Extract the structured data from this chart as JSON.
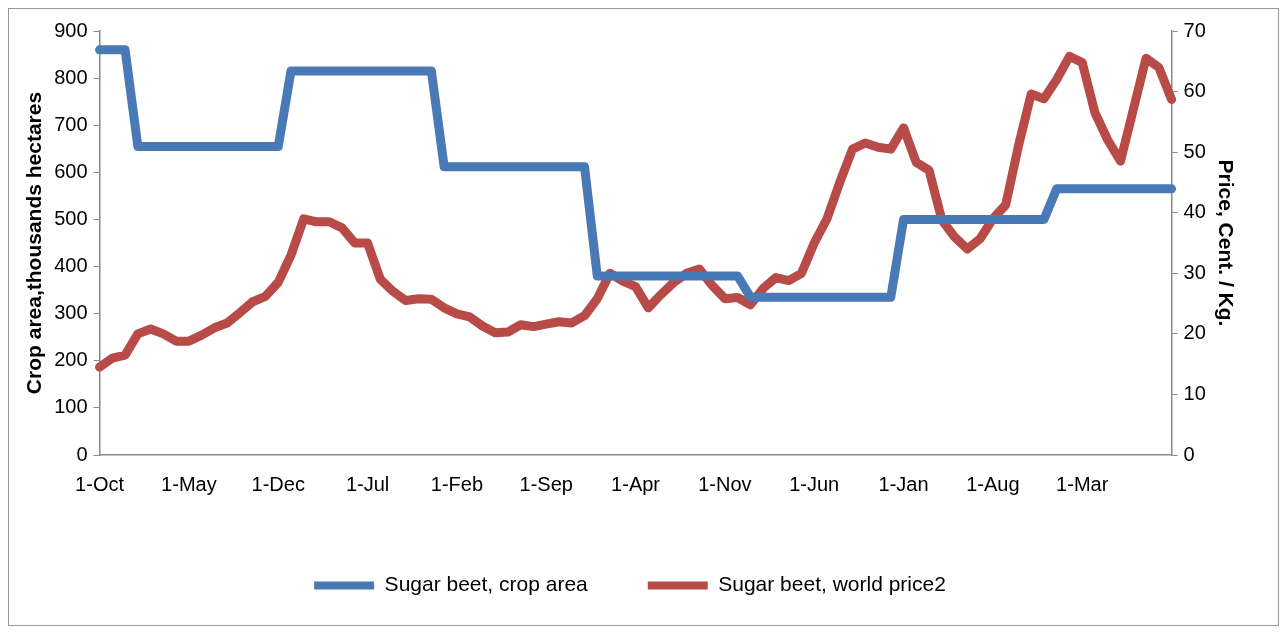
{
  "chart_data": {
    "type": "line",
    "categories": [
      "1-Oct",
      null,
      null,
      null,
      null,
      null,
      null,
      "1-May",
      null,
      null,
      null,
      null,
      null,
      null,
      "1-Dec",
      null,
      null,
      null,
      null,
      null,
      null,
      "1-Jul",
      null,
      null,
      null,
      null,
      null,
      null,
      "1-Feb",
      null,
      null,
      null,
      null,
      null,
      null,
      "1-Sep",
      null,
      null,
      null,
      null,
      null,
      null,
      "1-Apr",
      null,
      null,
      null,
      null,
      null,
      null,
      "1-Nov",
      null,
      null,
      null,
      null,
      null,
      null,
      "1-Jun",
      null,
      null,
      null,
      null,
      null,
      null,
      "1-Jan",
      null,
      null,
      null,
      null,
      null,
      null,
      "1-Aug",
      null,
      null,
      null,
      null,
      null,
      null,
      "1-Mar",
      null,
      null,
      null,
      null,
      null,
      null,
      null
    ],
    "series": [
      {
        "name": "Sugar beet, crop area",
        "color": "#4a7ab5",
        "values": [
          860,
          860,
          860,
          655,
          655,
          655,
          655,
          655,
          655,
          655,
          655,
          655,
          655,
          655,
          655,
          815,
          815,
          815,
          815,
          815,
          815,
          815,
          815,
          815,
          815,
          815,
          815,
          612,
          612,
          612,
          612,
          612,
          612,
          612,
          612,
          612,
          612,
          612,
          612,
          380,
          380,
          380,
          380,
          380,
          380,
          380,
          380,
          380,
          380,
          380,
          380,
          335,
          335,
          335,
          335,
          335,
          335,
          335,
          335,
          335,
          335,
          335,
          335,
          500,
          500,
          500,
          500,
          500,
          500,
          500,
          500,
          500,
          500,
          500,
          500,
          565,
          565,
          565,
          565,
          565,
          565,
          565,
          565,
          565,
          565
        ]
      },
      {
        "name": "Sugar beet, world price2",
        "color": "#b84a47",
        "axis": "y2",
        "values": [
          14.5,
          16,
          16.5,
          20,
          20.8,
          20,
          18.8,
          18.8,
          19.8,
          21,
          21.8,
          23.5,
          25.3,
          26.2,
          28.5,
          33,
          39,
          38.5,
          38.5,
          37.5,
          35,
          35,
          29,
          27,
          25.5,
          25.8,
          25.7,
          24.3,
          23.3,
          22.8,
          21.3,
          20.2,
          20.3,
          21.5,
          21.2,
          21.6,
          22,
          21.8,
          23,
          25.8,
          30,
          28.7,
          27.8,
          24.3,
          26.5,
          28.5,
          30,
          30.7,
          28,
          25.8,
          26,
          24.8,
          27.5,
          29.3,
          28.8,
          30,
          35,
          39,
          45,
          50.5,
          51.5,
          50.8,
          50.5,
          54,
          48.3,
          47,
          38.8,
          36,
          34,
          35.7,
          39,
          41.3,
          51,
          59.6,
          58.8,
          62,
          65.8,
          64.8,
          56.5,
          52,
          48.5,
          57,
          65.5,
          64,
          58.7
        ]
      }
    ],
    "ylabel": "Crop area,thousands hectares",
    "y2label": "Price, Cent. / Kg.",
    "ylim": [
      0,
      900
    ],
    "yticks": [
      0,
      100,
      200,
      300,
      400,
      500,
      600,
      700,
      800,
      900
    ],
    "y2lim": [
      0,
      70
    ],
    "y2ticks": [
      0,
      10,
      20,
      30,
      40,
      50,
      60,
      70
    ],
    "legend": "bottom",
    "marker": "none",
    "line_style": "solid",
    "grid": false
  }
}
